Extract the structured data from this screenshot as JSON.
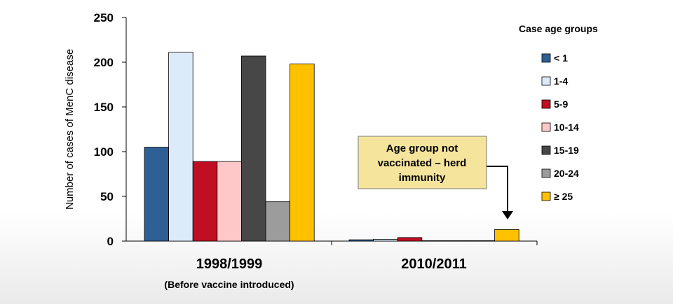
{
  "chart_data": {
    "type": "bar",
    "ylabel": "Number of cases of MenC disease",
    "ylim": [
      0,
      250
    ],
    "yticks": [
      0,
      50,
      100,
      150,
      200,
      250
    ],
    "grid": false,
    "categories": [
      {
        "label": "1998/1999",
        "sublabel": "(Before vaccine introduced)"
      },
      {
        "label": "2010/2011",
        "sublabel": ""
      }
    ],
    "legend": {
      "title": "Case age groups",
      "position": "right"
    },
    "series": [
      {
        "name": "< 1",
        "color": "#2E5F95",
        "values": [
          105,
          1.5
        ]
      },
      {
        "name": "1-4",
        "color": "#DCEBFA",
        "values": [
          211,
          2
        ]
      },
      {
        "name": "5-9",
        "color": "#C00F23",
        "values": [
          89,
          4
        ]
      },
      {
        "name": "10-14",
        "color": "#FFC8C8",
        "values": [
          89,
          0.5
        ]
      },
      {
        "name": "15-19",
        "color": "#474747",
        "values": [
          207,
          0.5
        ]
      },
      {
        "name": "20-24",
        "color": "#9C9C9C",
        "values": [
          44,
          0.5
        ]
      },
      {
        "name": "≥ 25",
        "color": "#FFC000",
        "values": [
          198,
          13
        ]
      }
    ],
    "annotations": [
      {
        "text_lines": [
          "Age group not",
          "vaccinated – herd",
          "immunity"
        ],
        "box_fill": "#F5E49C",
        "target": {
          "category_index": 1,
          "series_index": 6
        }
      }
    ]
  }
}
